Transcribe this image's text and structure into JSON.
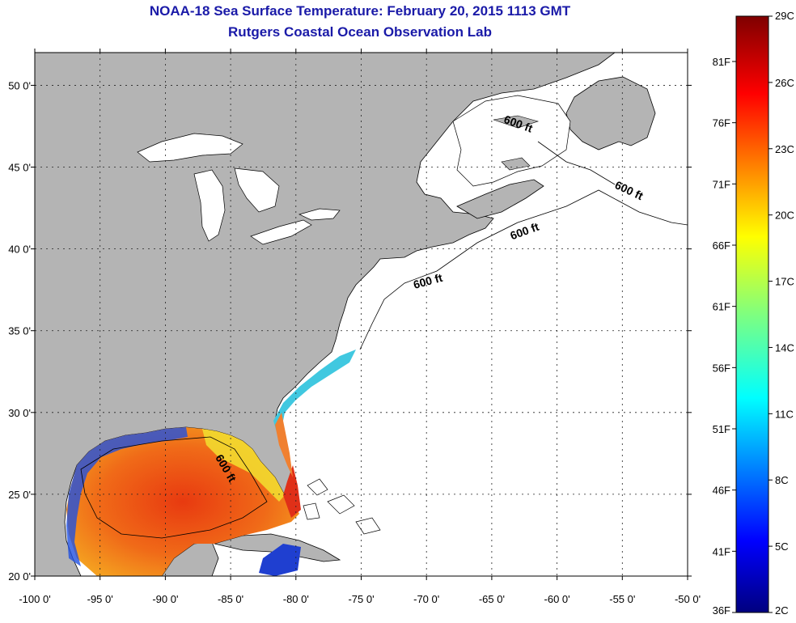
{
  "title": "NOAA-18 Sea Surface Temperature:  February 20, 2015 1113 GMT",
  "subtitle": "Rutgers Coastal Ocean Observation Lab",
  "map": {
    "lon_range": [
      -100,
      -50
    ],
    "lat_range": [
      20,
      52
    ],
    "x_ticks": [
      "-100 0'",
      "-95 0'",
      "-90 0'",
      "-85 0'",
      "-80 0'",
      "-75 0'",
      "-70 0'",
      "-65 0'",
      "-60 0'",
      "-55 0'",
      "-50 0'"
    ],
    "y_ticks": [
      "20 0'",
      "25 0'",
      "30 0'",
      "35 0'",
      "40 0'",
      "45 0'",
      "50 0'"
    ],
    "grid": "dotted",
    "contour_label": "600 ft",
    "contour_labels": [
      "600 ft",
      "600 ft",
      "600 ft",
      "600 ft",
      "600 ft"
    ],
    "land_color": "#b4b4b4",
    "no_data_color": "#ffffff"
  },
  "colorbar": {
    "celsius_labels": [
      "29C",
      "26C",
      "23C",
      "20C",
      "17C",
      "14C",
      "11C",
      "8C",
      "5C",
      "2C"
    ],
    "fahrenheit_labels": [
      "81F",
      "76F",
      "71F",
      "66F",
      "61F",
      "56F",
      "51F",
      "46F",
      "41F",
      "36F"
    ],
    "colormap": [
      "#00007f",
      "#0000ff",
      "#007fff",
      "#00ffff",
      "#7fff7f",
      "#ffff00",
      "#ff7f00",
      "#ff0000",
      "#7f0000"
    ]
  }
}
